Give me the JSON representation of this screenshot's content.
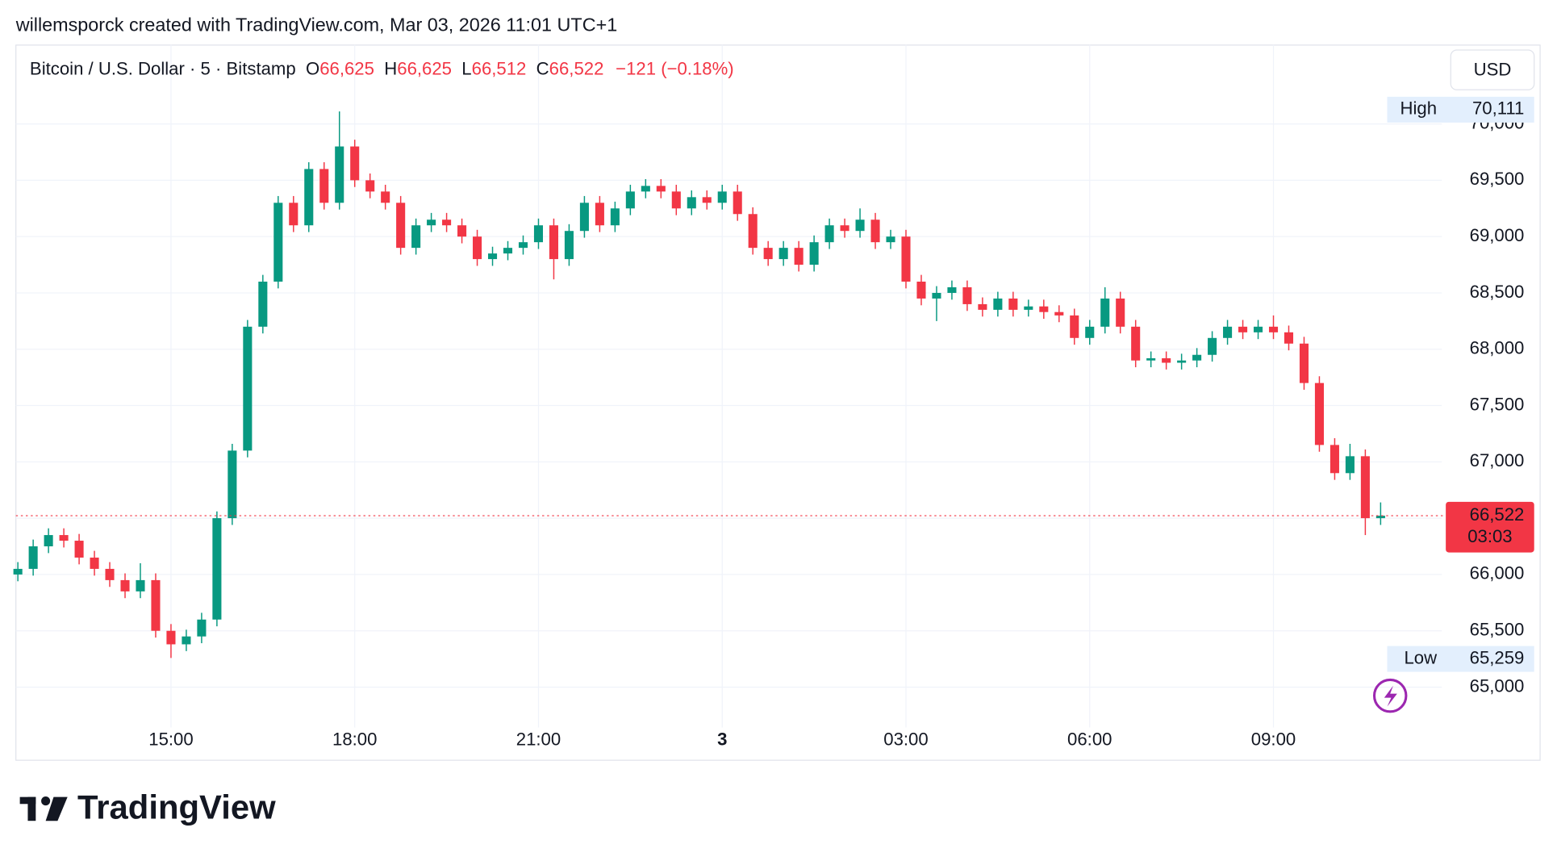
{
  "header": {
    "attribution": "willemsporck created with TradingView.com, Mar 03, 2026 11:01 UTC+1"
  },
  "legend": {
    "symbol": "Bitcoin / U.S. Dollar · 5 · Bitstamp",
    "o_label": "O",
    "o": "66,625",
    "h_label": "H",
    "h": "66,625",
    "l_label": "L",
    "l": "66,512",
    "c_label": "C",
    "c": "66,522",
    "change": "−121 (−0.18%)"
  },
  "currency_button": "USD",
  "chart_data": {
    "type": "candlestick",
    "categories": [
      "12:30",
      "12:45",
      "13:00",
      "13:15",
      "13:30",
      "13:45",
      "14:00",
      "14:15",
      "14:30",
      "14:45",
      "15:00",
      "15:15",
      "15:30",
      "15:45",
      "16:00",
      "16:15",
      "16:30",
      "16:45",
      "17:00",
      "17:15",
      "17:30",
      "17:45",
      "18:00",
      "18:15",
      "18:30",
      "18:45",
      "19:00",
      "19:15",
      "19:30",
      "19:45",
      "20:00",
      "20:15",
      "20:30",
      "20:45",
      "21:00",
      "21:15",
      "21:30",
      "21:45",
      "22:00",
      "22:15",
      "22:30",
      "22:45",
      "23:00",
      "23:15",
      "23:30",
      "23:45",
      "00:00",
      "00:15",
      "00:30",
      "00:45",
      "01:00",
      "01:15",
      "01:30",
      "01:45",
      "02:00",
      "02:15",
      "02:30",
      "02:45",
      "03:00",
      "03:15",
      "03:30",
      "03:45",
      "04:00",
      "04:15",
      "04:30",
      "04:45",
      "05:00",
      "05:15",
      "05:30",
      "05:45",
      "06:00",
      "06:15",
      "06:30",
      "06:45",
      "07:00",
      "07:15",
      "07:30",
      "07:45",
      "08:00",
      "08:15",
      "08:30",
      "08:45",
      "09:00",
      "09:15",
      "09:30",
      "09:45",
      "10:00",
      "10:15",
      "10:30",
      "10:45"
    ],
    "open": [
      66000,
      66050,
      66250,
      66350,
      66300,
      66150,
      66050,
      65950,
      65850,
      65950,
      65500,
      65380,
      65450,
      65600,
      66500,
      67100,
      68200,
      68600,
      69300,
      69100,
      69600,
      69300,
      69800,
      69500,
      69400,
      69300,
      68900,
      69100,
      69150,
      69100,
      69000,
      68800,
      68850,
      68900,
      68950,
      69100,
      68800,
      69050,
      69300,
      69100,
      69250,
      69400,
      69450,
      69400,
      69250,
      69350,
      69300,
      69400,
      69200,
      68900,
      68800,
      68900,
      68750,
      68950,
      69100,
      69050,
      69150,
      68950,
      69000,
      68600,
      68450,
      68500,
      68550,
      68400,
      68350,
      68450,
      68350,
      68380,
      68330,
      68300,
      68100,
      68200,
      68450,
      68200,
      67900,
      67920,
      67880,
      67900,
      67950,
      68100,
      68200,
      68150,
      68200,
      68150,
      68050,
      67700,
      67150,
      66900,
      67050,
      66500
    ],
    "high": [
      66110,
      66310,
      66410,
      66410,
      66360,
      66210,
      66110,
      66010,
      66100,
      66010,
      65560,
      65510,
      65660,
      66560,
      67160,
      68260,
      68660,
      69360,
      69360,
      69660,
      69660,
      70111,
      69860,
      69560,
      69460,
      69360,
      69160,
      69210,
      69210,
      69160,
      69060,
      68910,
      68960,
      69010,
      69160,
      69160,
      69110,
      69360,
      69360,
      69310,
      69460,
      69510,
      69510,
      69460,
      69410,
      69410,
      69460,
      69460,
      69260,
      68960,
      68960,
      68960,
      69010,
      69160,
      69160,
      69250,
      69210,
      69060,
      69060,
      68660,
      68560,
      68610,
      68610,
      68460,
      68510,
      68510,
      68440,
      68440,
      68390,
      68360,
      68260,
      68550,
      68510,
      68260,
      67980,
      67980,
      67960,
      68010,
      68160,
      68260,
      68260,
      68260,
      68300,
      68210,
      68110,
      67760,
      67210,
      67160,
      67110,
      66640
    ],
    "low": [
      65940,
      65990,
      66190,
      66240,
      66090,
      65990,
      65890,
      65790,
      65790,
      65440,
      65259,
      65320,
      65390,
      65540,
      66440,
      67040,
      68140,
      68540,
      69040,
      69040,
      69240,
      69240,
      69440,
      69340,
      69240,
      68840,
      68840,
      69040,
      69040,
      68940,
      68740,
      68740,
      68790,
      68840,
      68890,
      68620,
      68740,
      68990,
      69040,
      69040,
      69190,
      69340,
      69340,
      69190,
      69190,
      69240,
      69240,
      69140,
      68840,
      68740,
      68740,
      68690,
      68690,
      68890,
      68990,
      68990,
      68890,
      68890,
      68540,
      68390,
      68250,
      68440,
      68340,
      68290,
      68290,
      68290,
      68290,
      68270,
      68240,
      68040,
      68040,
      68140,
      68140,
      67840,
      67840,
      67820,
      67820,
      67840,
      67890,
      68040,
      68090,
      68090,
      68090,
      67990,
      67640,
      67090,
      66840,
      66840,
      66350,
      66440
    ],
    "close": [
      66050,
      66250,
      66350,
      66300,
      66150,
      66050,
      65950,
      65850,
      65950,
      65500,
      65380,
      65450,
      65600,
      66500,
      67100,
      68200,
      68600,
      69300,
      69100,
      69600,
      69300,
      69800,
      69500,
      69400,
      69300,
      68900,
      69100,
      69150,
      69100,
      69000,
      68800,
      68850,
      68900,
      68950,
      69100,
      68800,
      69050,
      69300,
      69100,
      69250,
      69400,
      69450,
      69400,
      69250,
      69350,
      69300,
      69400,
      69200,
      68900,
      68800,
      68900,
      68750,
      68950,
      69100,
      69050,
      69150,
      68950,
      69000,
      68600,
      68450,
      68500,
      68550,
      68400,
      68350,
      68450,
      68350,
      68380,
      68330,
      68300,
      68100,
      68200,
      68450,
      68200,
      67900,
      67920,
      67880,
      67900,
      67950,
      68100,
      68200,
      68150,
      68200,
      68150,
      68050,
      67700,
      67150,
      66900,
      67050,
      66500,
      66522
    ],
    "up_color": "#089981",
    "down_color": "#f23645",
    "ylim": [
      64730,
      70700
    ],
    "yticks": [
      {
        "value": 65000,
        "label": "65,000"
      },
      {
        "value": 65500,
        "label": "65,500"
      },
      {
        "value": 66000,
        "label": "66,000"
      },
      {
        "value": 66500,
        "label": "66,500"
      },
      {
        "value": 67000,
        "label": "67,000"
      },
      {
        "value": 67500,
        "label": "67,500"
      },
      {
        "value": 68000,
        "label": "68,000"
      },
      {
        "value": 68500,
        "label": "68,500"
      },
      {
        "value": 69000,
        "label": "69,000"
      },
      {
        "value": 69500,
        "label": "69,500"
      },
      {
        "value": 70000,
        "label": "70,000"
      }
    ],
    "xticks": [
      "15:00",
      "18:00",
      "21:00",
      {
        "value": "00:00",
        "label": "3"
      },
      "03:00",
      "06:00",
      "09:00"
    ],
    "grid": true,
    "high_marker": {
      "label": "High",
      "value": 70111,
      "value_label": "70,111"
    },
    "low_marker": {
      "label": "Low",
      "value": 65259,
      "value_label": "65,259"
    },
    "last_price": {
      "value": 66522,
      "value_label": "66,522",
      "countdown": "03:03"
    }
  },
  "footer": {
    "brand": "TradingView"
  }
}
